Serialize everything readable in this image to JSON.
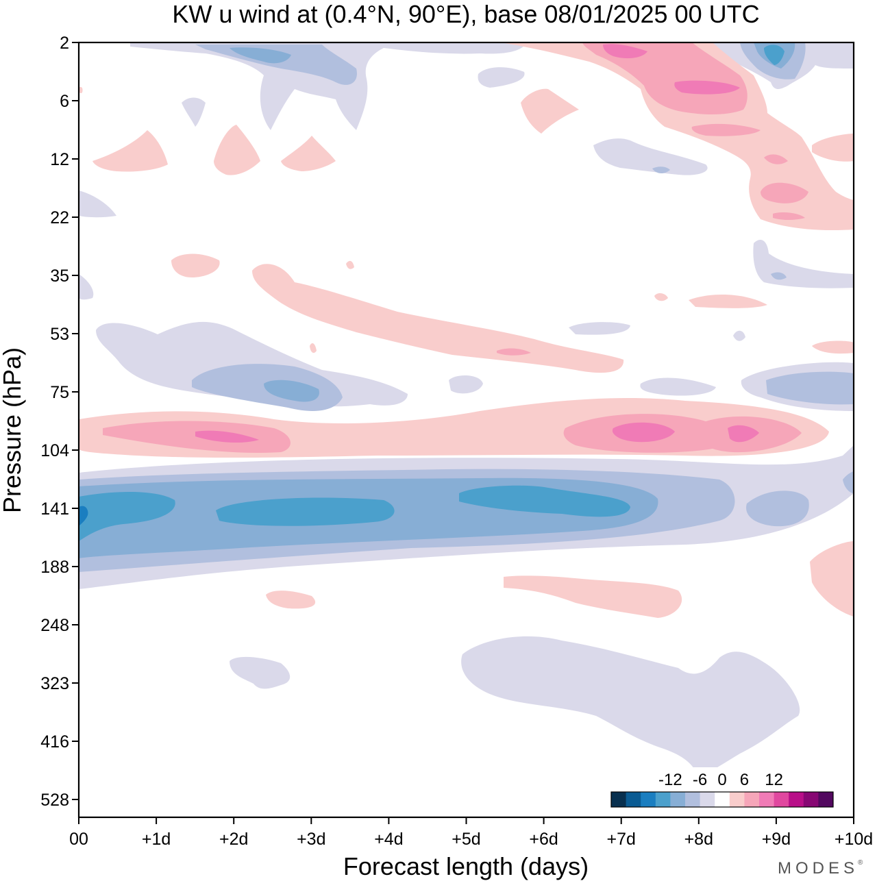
{
  "chart_data": {
    "type": "heatmap",
    "title": "KW u wind at (0.4°N, 90°E),  base 08/01/2025  00 UTC",
    "xlabel": "Forecast length (days)",
    "ylabel": "Pressure (hPa)",
    "x_ticks": [
      "00",
      "+1d",
      "+2d",
      "+3d",
      "+4d",
      "+5d",
      "+6d",
      "+7d",
      "+8d",
      "+9d",
      "+10d"
    ],
    "y_ticks": [
      "2",
      "6",
      "12",
      "22",
      "35",
      "53",
      "75",
      "104",
      "141",
      "188",
      "248",
      "323",
      "416",
      "528"
    ],
    "xlim_days": [
      0,
      10
    ],
    "grid": false,
    "legend": "bottom-right",
    "colorbar": {
      "labels": [
        "-12",
        "-6",
        "0",
        "6",
        "12"
      ],
      "label_positions": [
        -12,
        -6,
        0,
        6,
        12
      ],
      "levels": [
        -21,
        -18,
        -15,
        -12,
        -9,
        -6,
        -3,
        3,
        6,
        9,
        12,
        15,
        18,
        21
      ],
      "colors": [
        "#08304f",
        "#0a5b93",
        "#1a7ec0",
        "#4ba0cc",
        "#87aed5",
        "#b1bfde",
        "#dad9ea",
        "#ffffff",
        "#f9cdcc",
        "#f6a6b9",
        "#f07bb6",
        "#e0479f",
        "#b80f88",
        "#870773",
        "#52085f"
      ]
    },
    "features": [
      {
        "sign": "negative",
        "peak": -9,
        "pressure_hPa": 141,
        "day_from": 0,
        "day_to": 10,
        "note": "strong easterly band"
      },
      {
        "sign": "positive",
        "peak": 9,
        "pressure_hPa": 95,
        "day_from": 0,
        "day_to": 9.6
      },
      {
        "sign": "negative",
        "peak": -6,
        "pressure_hPa": 70,
        "day_from": 1.5,
        "day_to": 3.2
      },
      {
        "sign": "positive",
        "peak": 6,
        "pressure_hPa": 45,
        "day_from": 2.3,
        "day_to": 7
      },
      {
        "sign": "negative",
        "peak": -3,
        "pressure_hPa": 350,
        "day_from": 5,
        "day_to": 9.3
      },
      {
        "sign": "positive",
        "peak": 9,
        "pressure_hPa": 4,
        "day_from": 6.5,
        "day_to": 9
      },
      {
        "sign": "negative",
        "peak": -9,
        "pressure_hPa": 3,
        "day_from": 8.5,
        "day_to": 9.5
      }
    ]
  },
  "branding": {
    "logo_text": "MODES"
  }
}
